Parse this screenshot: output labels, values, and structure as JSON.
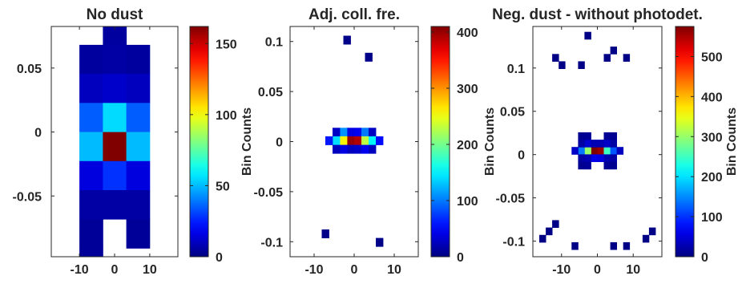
{
  "chart_data": [
    {
      "type": "heatmap",
      "title": "No dust",
      "cell_size": [
        6.67,
        0.0227
      ],
      "xlim": [
        -18,
        18
      ],
      "ylim": [
        -0.0975,
        0.0825
      ],
      "xticks": [
        -10,
        0,
        10
      ],
      "yticks": [
        -0.05,
        0,
        0.05
      ],
      "ytick_labels": [
        "-0.05",
        "0",
        "0.05"
      ],
      "colorbar": {
        "ticks": [
          0,
          50,
          100,
          150
        ],
        "label": "",
        "max": 162
      },
      "cells": [
        {
          "x": 0,
          "y": 0.0795,
          "v": 5
        },
        {
          "x": -6.67,
          "y": 0.0568,
          "v": 5
        },
        {
          "x": 0,
          "y": 0.0568,
          "v": 6
        },
        {
          "x": 6.67,
          "y": 0.0568,
          "v": 5
        },
        {
          "x": -6.67,
          "y": 0.0341,
          "v": 10
        },
        {
          "x": 0,
          "y": 0.0341,
          "v": 12
        },
        {
          "x": 6.67,
          "y": 0.0341,
          "v": 10
        },
        {
          "x": -6.67,
          "y": 0.0114,
          "v": 35
        },
        {
          "x": 0,
          "y": 0.0114,
          "v": 55
        },
        {
          "x": 6.67,
          "y": 0.0114,
          "v": 35
        },
        {
          "x": -6.67,
          "y": -0.0114,
          "v": 50
        },
        {
          "x": 0,
          "y": -0.0114,
          "v": 162
        },
        {
          "x": 6.67,
          "y": -0.0114,
          "v": 50
        },
        {
          "x": -6.67,
          "y": -0.0341,
          "v": 15
        },
        {
          "x": 0,
          "y": -0.0341,
          "v": 28
        },
        {
          "x": 6.67,
          "y": -0.0341,
          "v": 15
        },
        {
          "x": -6.67,
          "y": -0.0568,
          "v": 6
        },
        {
          "x": 0,
          "y": -0.0568,
          "v": 6
        },
        {
          "x": 6.67,
          "y": -0.0568,
          "v": 6
        },
        {
          "x": -6.67,
          "y": -0.0795,
          "v": 4
        },
        {
          "x": 6.67,
          "y": -0.0795,
          "v": 4
        },
        {
          "x": -6.67,
          "y": -0.1022,
          "v": 4
        }
      ]
    },
    {
      "type": "heatmap",
      "title": "Adj. coll. fre.",
      "cell_size": [
        1.8,
        0.0085
      ],
      "xlim": [
        -16,
        16
      ],
      "ylim": [
        -0.115,
        0.115
      ],
      "xticks": [
        -10,
        0,
        10
      ],
      "yticks": [
        -0.1,
        -0.05,
        0,
        0.05,
        0.1
      ],
      "ytick_labels": [
        "-0.1",
        "-0.05",
        "0",
        "0.05",
        "0.1"
      ],
      "colorbar": {
        "ticks": [
          0,
          100,
          200,
          300,
          400
        ],
        "label": "Bin Counts",
        "max": 410
      },
      "cells": [
        {
          "x": -1.8,
          "y": 0.1015,
          "v": 4
        },
        {
          "x": 3.6,
          "y": 0.0845,
          "v": 4
        },
        {
          "x": -0.9,
          "y": 0.0095,
          "v": 40
        },
        {
          "x": 0.9,
          "y": 0.0095,
          "v": 45
        },
        {
          "x": -2.7,
          "y": 0.0095,
          "v": 110
        },
        {
          "x": 2.7,
          "y": 0.0095,
          "v": 100
        },
        {
          "x": -4.5,
          "y": 0.0095,
          "v": 28
        },
        {
          "x": 4.5,
          "y": 0.0095,
          "v": 28
        },
        {
          "x": -0.9,
          "y": 0.001,
          "v": 400
        },
        {
          "x": 0.9,
          "y": 0.001,
          "v": 390
        },
        {
          "x": -2.7,
          "y": 0.001,
          "v": 260
        },
        {
          "x": 2.7,
          "y": 0.001,
          "v": 230
        },
        {
          "x": -4.5,
          "y": 0.001,
          "v": 140
        },
        {
          "x": 4.5,
          "y": 0.001,
          "v": 150
        },
        {
          "x": -6.3,
          "y": 0.001,
          "v": 60
        },
        {
          "x": 6.3,
          "y": 0.001,
          "v": 55
        },
        {
          "x": -0.9,
          "y": -0.0075,
          "v": 25
        },
        {
          "x": 0.9,
          "y": -0.0075,
          "v": 30
        },
        {
          "x": -2.7,
          "y": -0.0075,
          "v": 40
        },
        {
          "x": 2.7,
          "y": -0.0075,
          "v": 45
        },
        {
          "x": -4.5,
          "y": -0.0075,
          "v": 25
        },
        {
          "x": 4.5,
          "y": -0.0075,
          "v": 25
        },
        {
          "x": -7.2,
          "y": -0.092,
          "v": 4
        },
        {
          "x": 6.3,
          "y": -0.1005,
          "v": 4
        }
      ]
    },
    {
      "type": "heatmap",
      "title": "Neg. dust - without photodet.",
      "cell_size": [
        1.8,
        0.0085
      ],
      "xlim": [
        -18,
        18
      ],
      "ylim": [
        -0.118,
        0.148
      ],
      "xticks": [
        -10,
        0,
        10
      ],
      "yticks": [
        -0.1,
        -0.05,
        0,
        0.05,
        0.1
      ],
      "ytick_labels": [
        "-0.1",
        "-0.05",
        "0",
        "0.05",
        "0.1"
      ],
      "colorbar": {
        "ticks": [
          0,
          100,
          200,
          300,
          400,
          500
        ],
        "label": "Bin Counts",
        "max": 575
      },
      "cells": [
        {
          "x": -0.9,
          "y": 0.0045,
          "v": 575
        },
        {
          "x": 0.9,
          "y": 0.0045,
          "v": 560
        },
        {
          "x": -2.7,
          "y": 0.0045,
          "v": 300
        },
        {
          "x": 2.7,
          "y": 0.0045,
          "v": 250
        },
        {
          "x": -4.5,
          "y": 0.0045,
          "v": 140
        },
        {
          "x": 4.5,
          "y": 0.0045,
          "v": 120
        },
        {
          "x": -6.3,
          "y": 0.0045,
          "v": 40
        },
        {
          "x": 6.3,
          "y": 0.0045,
          "v": 35
        },
        {
          "x": -0.9,
          "y": -0.004,
          "v": 60
        },
        {
          "x": 0.9,
          "y": -0.004,
          "v": 55
        },
        {
          "x": -2.7,
          "y": 0.013,
          "v": 45
        },
        {
          "x": 2.7,
          "y": 0.013,
          "v": 40
        },
        {
          "x": -0.9,
          "y": 0.013,
          "v": 30
        },
        {
          "x": 0.9,
          "y": 0.013,
          "v": 30
        },
        {
          "x": -4.5,
          "y": 0.013,
          "v": 20
        },
        {
          "x": 4.5,
          "y": 0.013,
          "v": 20
        },
        {
          "x": -2.7,
          "y": -0.004,
          "v": 30
        },
        {
          "x": 2.7,
          "y": -0.004,
          "v": 28
        },
        {
          "x": -4.5,
          "y": -0.004,
          "v": 20
        },
        {
          "x": 4.5,
          "y": -0.004,
          "v": 20
        },
        {
          "x": -4.5,
          "y": 0.0215,
          "v": 10
        },
        {
          "x": 4.5,
          "y": 0.0215,
          "v": 10
        },
        {
          "x": -2.7,
          "y": 0.0215,
          "v": 12
        },
        {
          "x": 2.7,
          "y": 0.0215,
          "v": 12
        },
        {
          "x": -4.5,
          "y": -0.0125,
          "v": 10
        },
        {
          "x": 4.5,
          "y": -0.0125,
          "v": 10
        },
        {
          "x": -2.7,
          "y": -0.0125,
          "v": 14
        },
        {
          "x": 2.7,
          "y": -0.0125,
          "v": 12
        },
        {
          "x": -2.7,
          "y": 0.1375,
          "v": 4
        },
        {
          "x": 2.7,
          "y": 0.112,
          "v": 4
        },
        {
          "x": 4.5,
          "y": 0.1205,
          "v": 4
        },
        {
          "x": -4.5,
          "y": 0.1035,
          "v": 4
        },
        {
          "x": 8.1,
          "y": 0.112,
          "v": 4
        },
        {
          "x": -11.7,
          "y": 0.112,
          "v": 4
        },
        {
          "x": -9.9,
          "y": 0.1035,
          "v": 4
        },
        {
          "x": -15.3,
          "y": -0.097,
          "v": 4
        },
        {
          "x": -13.5,
          "y": -0.0885,
          "v": 4
        },
        {
          "x": -11.7,
          "y": -0.08,
          "v": 4
        },
        {
          "x": 15.3,
          "y": -0.0885,
          "v": 4
        },
        {
          "x": 13.5,
          "y": -0.097,
          "v": 4
        },
        {
          "x": -6.3,
          "y": -0.1055,
          "v": 4
        },
        {
          "x": 4.5,
          "y": -0.1055,
          "v": 4
        },
        {
          "x": 8.1,
          "y": -0.1055,
          "v": 4
        }
      ]
    }
  ]
}
